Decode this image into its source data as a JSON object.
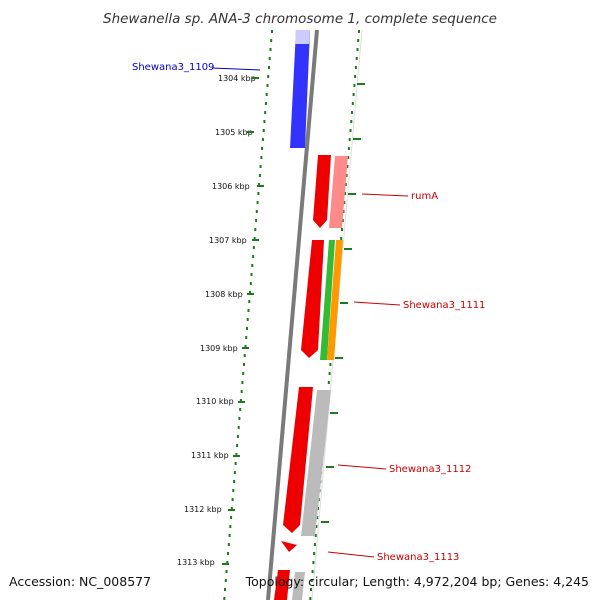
{
  "title": "Shewanella sp. ANA-3 chromosome 1, complete sequence",
  "footer": {
    "accession": "Accession: NC_008577",
    "topology": "Topology: circular; Length: 4,972,204 bp; Genes: 4,245"
  },
  "ticks": [
    "1304 kbp",
    "1305 kbp",
    "1306 kbp",
    "1307 kbp",
    "1308 kbp",
    "1309 kbp",
    "1310 kbp",
    "1311 kbp",
    "1312 kbp",
    "1313 kbp"
  ],
  "colors": {
    "backbone": "#7a7a7a",
    "dots": "#1d7a1d",
    "forward_gene": "#3333ff",
    "reverse_gene": "#ee0000",
    "label_blue": "#0000cc",
    "label_red": "#cc0000",
    "feature_pink": "#ff8a8a",
    "feature_green": "#33bb33",
    "feature_orange": "#ff9900",
    "feature_gray": "#bbbbbb"
  },
  "genes": [
    {
      "name": "Shewana3_1109",
      "strand": "forward",
      "color": "blue"
    },
    {
      "name": "rumA",
      "strand": "reverse",
      "color": "red"
    },
    {
      "name": "Shewana3_1111",
      "strand": "reverse",
      "color": "red"
    },
    {
      "name": "Shewana3_1112",
      "strand": "reverse",
      "color": "red"
    },
    {
      "name": "Shewana3_1113",
      "strand": "reverse",
      "color": "red"
    }
  ]
}
